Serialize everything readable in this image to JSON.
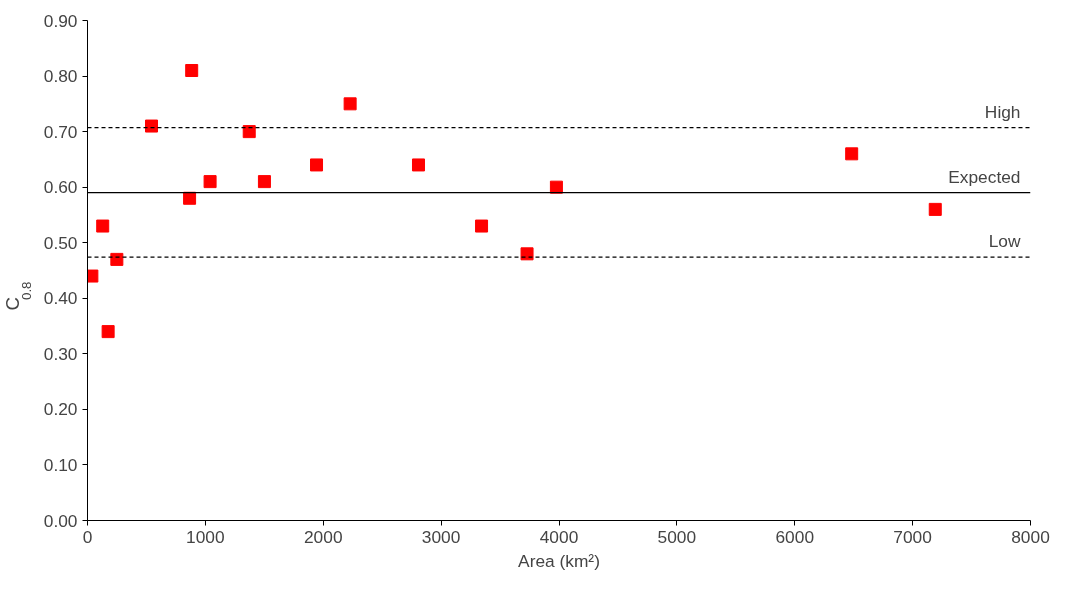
{
  "chart_data": {
    "type": "scatter",
    "xlabel": "Area (km²)",
    "ylabel": "C$_{0.8}$",
    "x": [
      37,
      129,
      175,
      249,
      543,
      866,
      884,
      1040,
      1372,
      1501,
      1943,
      2228,
      2808,
      3343,
      3729,
      3978,
      6483,
      7192
    ],
    "values": [
      0.44,
      0.53,
      0.34,
      0.47,
      0.71,
      0.58,
      0.81,
      0.61,
      0.7,
      0.61,
      0.64,
      0.75,
      0.64,
      0.53,
      0.48,
      0.6,
      0.66,
      0.56
    ],
    "color": "#ff0000",
    "marker": "square",
    "grid": false,
    "xlim": [
      0,
      8000
    ],
    "xticks": [
      0,
      1000,
      2000,
      3000,
      4000,
      5000,
      6000,
      7000,
      8000
    ],
    "ylim": [
      0,
      0.9
    ],
    "yticks": [
      {
        "value": 0,
        "label": "0.00"
      },
      {
        "value": 0.1,
        "label": "0.10"
      },
      {
        "value": 0.2,
        "label": "0.20"
      },
      {
        "value": 0.3,
        "label": "0.30"
      },
      {
        "value": 0.4,
        "label": "0.40"
      },
      {
        "value": 0.5,
        "label": "0.50"
      },
      {
        "value": 0.6,
        "label": "0.60"
      },
      {
        "value": 0.7,
        "label": "0.70"
      },
      {
        "value": 0.8,
        "label": "0.80"
      },
      {
        "value": 0.9,
        "label": "0.90"
      }
    ],
    "ref_lines": [
      {
        "axis": "y",
        "value": 0.707,
        "label": "High",
        "color": "#000000",
        "line_style": "dashed"
      },
      {
        "axis": "y",
        "value": 0.59,
        "label": "Expected",
        "color": "#000000",
        "line_style": "solid"
      },
      {
        "axis": "y",
        "value": 0.474,
        "label": "Low",
        "color": "#000000",
        "line_style": "dashed"
      }
    ]
  }
}
